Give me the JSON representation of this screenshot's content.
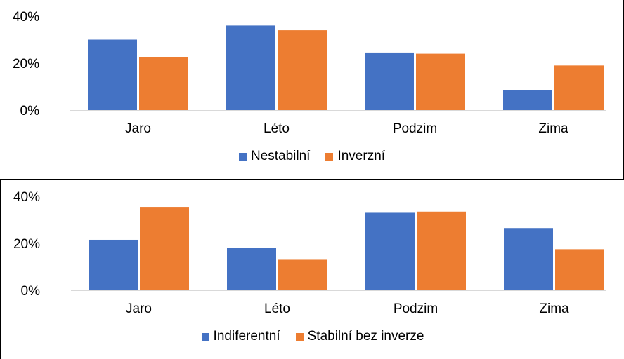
{
  "chart_data": [
    {
      "type": "bar",
      "categories": [
        "Jaro",
        "Léto",
        "Podzim",
        "Zima"
      ],
      "series": [
        {
          "name": "Nestabilní",
          "color": "#4472C4",
          "values": [
            0.3,
            0.36,
            0.245,
            0.085
          ]
        },
        {
          "name": "Inverzní",
          "color": "#ED7D31",
          "values": [
            0.225,
            0.34,
            0.24,
            0.19
          ]
        }
      ],
      "ylim": [
        0,
        0.4
      ],
      "yticks": [
        {
          "value": 0,
          "label": "0%"
        },
        {
          "value": 0.2,
          "label": "20%"
        },
        {
          "value": 0.4,
          "label": "40%"
        }
      ],
      "grid": false,
      "legend_position": "bottom"
    },
    {
      "type": "bar",
      "categories": [
        "Jaro",
        "Léto",
        "Podzim",
        "Zima"
      ],
      "series": [
        {
          "name": "Indiferentní",
          "color": "#4472C4",
          "values": [
            0.215,
            0.18,
            0.33,
            0.265
          ]
        },
        {
          "name": "Stabilní bez inverze",
          "color": "#ED7D31",
          "values": [
            0.355,
            0.13,
            0.335,
            0.175
          ]
        }
      ],
      "ylim": [
        0,
        0.4
      ],
      "yticks": [
        {
          "value": 0,
          "label": "0%"
        },
        {
          "value": 0.2,
          "label": "20%"
        },
        {
          "value": 0.4,
          "label": "40%"
        }
      ],
      "grid": false,
      "legend_position": "bottom"
    }
  ]
}
